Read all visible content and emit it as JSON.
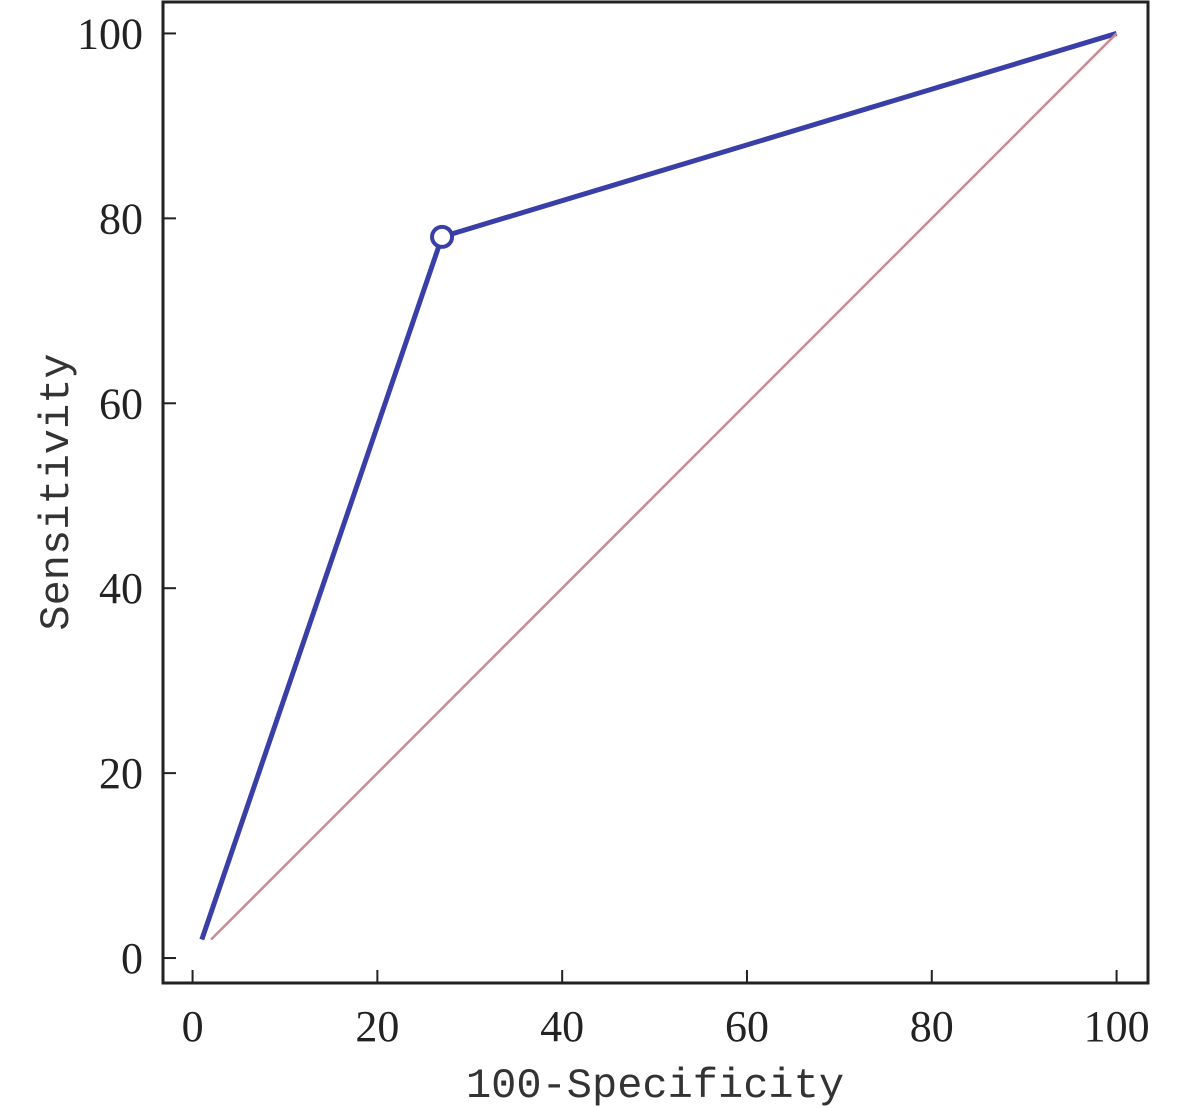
{
  "chart_data": {
    "type": "line",
    "xlabel": "100-Specificity",
    "ylabel": "Sensitivity",
    "xlim": [
      -3.2,
      103.4
    ],
    "ylim": [
      -2.7,
      103.4
    ],
    "xticks": [
      0,
      20,
      40,
      60,
      80,
      100
    ],
    "yticks": [
      0,
      20,
      40,
      60,
      80,
      100
    ],
    "series": [
      {
        "color": "#3a3fa8",
        "x": [
          1,
          27,
          100
        ],
        "values": [
          2,
          78,
          100
        ]
      },
      {
        "color": "#c98a94",
        "x": [
          2,
          100
        ],
        "values": [
          2,
          100
        ]
      },
      {
        "color": "#3a3fa8",
        "x": [
          27
        ],
        "values": [
          78
        ],
        "marker": "open-circle"
      }
    ]
  }
}
